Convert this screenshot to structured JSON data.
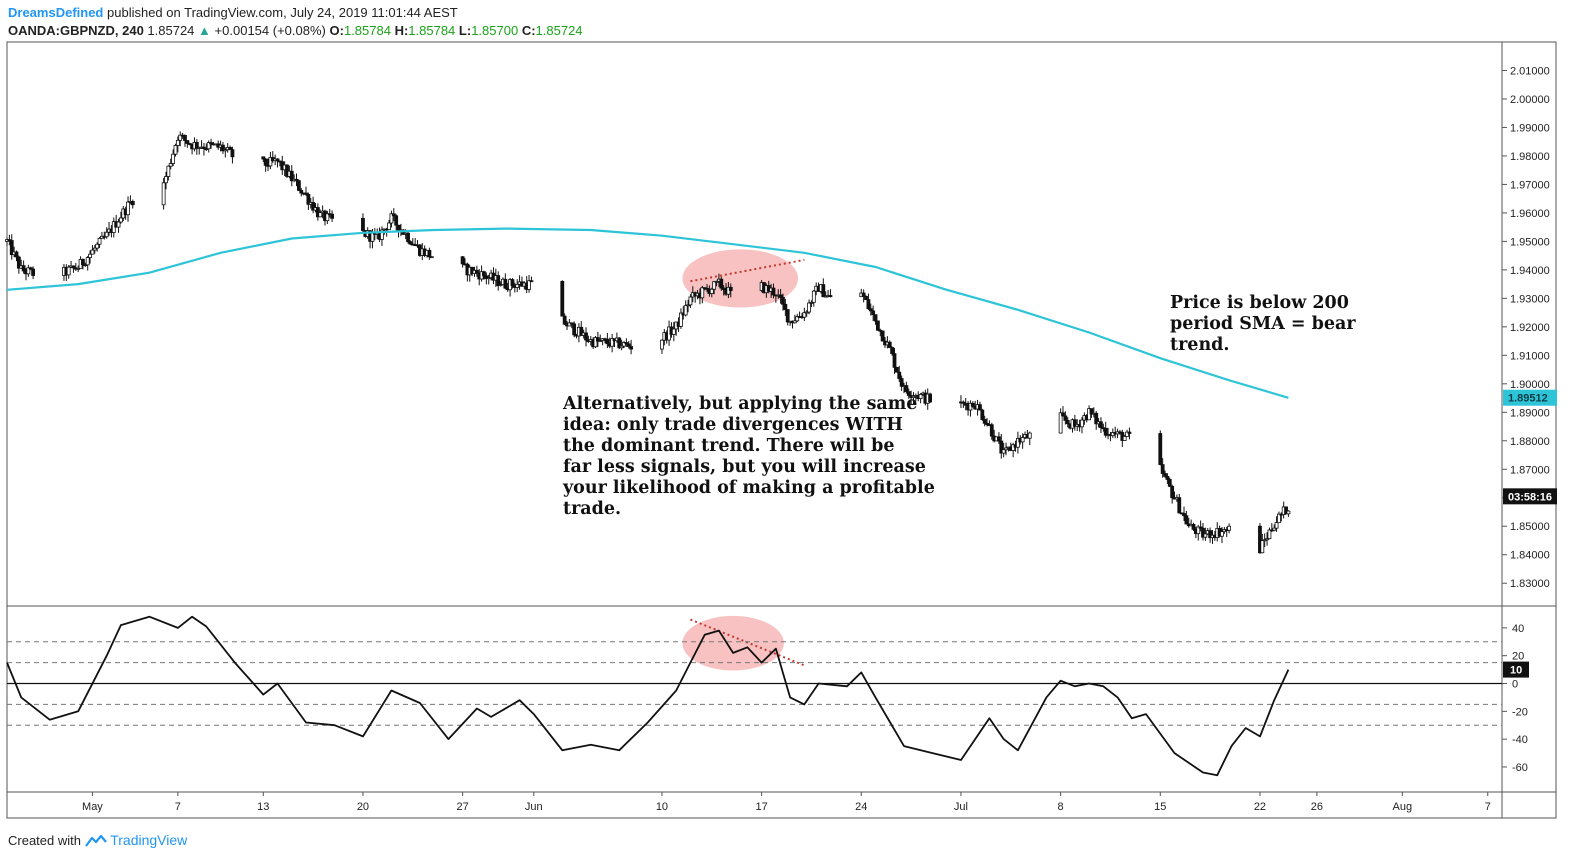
{
  "header": {
    "author": "DreamsDefined",
    "published": "published on TradingView.com, July 24, 2019 11:01:44 AEST",
    "symbol": "OANDA:GBPNZD, 240",
    "last": "1.85724",
    "change": "+0.00154 (+0.08%)",
    "o_label": "O:",
    "o": "1.85784",
    "h_label": "H:",
    "h": "1.85784",
    "l_label": "L:",
    "l": "1.85700",
    "c_label": "C:",
    "c": "1.85724"
  },
  "footer": {
    "created": "Created with",
    "brand": "TradingView"
  },
  "annotations": {
    "divergence_note": "Alternatively, but applying the same\nidea: only trade divergences WITH\nthe dominant trend. There will be\nfar less signals, but you will increase\nyour likelihood of making a profitable\ntrade.",
    "sma_note": "Price is below 200\nperiod SMA = bear\ntrend."
  },
  "colors": {
    "sma": "#2ec4d8",
    "candle": "#111111",
    "oscillator": "#111111",
    "highlight": "#f7b7b7",
    "divergence_line": "#c0392b",
    "price_badge": "#2ec4d8",
    "countdown_badge": "#111111"
  },
  "chart_data": {
    "type": "candlestick",
    "price_axis": {
      "ylim": [
        1.822,
        2.02
      ],
      "ticks": [
        "2.01000",
        "2.00000",
        "1.99000",
        "1.98000",
        "1.97000",
        "1.96000",
        "1.95000",
        "1.94000",
        "1.93000",
        "1.92000",
        "1.91000",
        "1.90000",
        "1.89000",
        "1.88000",
        "1.87000",
        "1.86000",
        "1.85000",
        "1.84000",
        "1.83000"
      ],
      "sma_label": "1.89512",
      "countdown_label": "03:58:16"
    },
    "x_axis": {
      "ticks": [
        "May",
        "7",
        "13",
        "20",
        "27",
        "Jun",
        "10",
        "17",
        "24",
        "Jul",
        "8",
        "15",
        "22",
        "26",
        "Aug",
        "7"
      ],
      "xlim": [
        "Apr 25",
        "Aug 8"
      ]
    },
    "price_path": [
      {
        "x": "Apr 25",
        "y": 1.95
      },
      {
        "x": "Apr 26",
        "y": 1.94
      },
      {
        "x": "Apr 28",
        "y": 1.937
      },
      {
        "x": "Apr 30",
        "y": 1.941
      },
      {
        "x": "May 2",
        "y": 1.952
      },
      {
        "x": "May 4",
        "y": 1.966
      },
      {
        "x": "May 6",
        "y": 1.97
      },
      {
        "x": "May 7",
        "y": 1.987
      },
      {
        "x": "May 8",
        "y": 1.984
      },
      {
        "x": "May 10",
        "y": 1.983
      },
      {
        "x": "May 12",
        "y": 1.976
      },
      {
        "x": "May 14",
        "y": 1.978
      },
      {
        "x": "May 16",
        "y": 1.966
      },
      {
        "x": "May 17",
        "y": 1.959
      },
      {
        "x": "May 19",
        "y": 1.955
      },
      {
        "x": "May 21",
        "y": 1.951
      },
      {
        "x": "May 22",
        "y": 1.958
      },
      {
        "x": "May 24",
        "y": 1.947
      },
      {
        "x": "May 26",
        "y": 1.942
      },
      {
        "x": "May 28",
        "y": 1.939
      },
      {
        "x": "May 30",
        "y": 1.935
      },
      {
        "x": "Jun 1",
        "y": 1.935
      },
      {
        "x": "Jun 3",
        "y": 1.922
      },
      {
        "x": "Jun 5",
        "y": 1.915
      },
      {
        "x": "Jun 7",
        "y": 1.914
      },
      {
        "x": "Jun 9",
        "y": 1.912
      },
      {
        "x": "Jun 11",
        "y": 1.92
      },
      {
        "x": "Jun 12",
        "y": 1.93
      },
      {
        "x": "Jun 14",
        "y": 1.935
      },
      {
        "x": "Jun 15",
        "y": 1.931
      },
      {
        "x": "Jun 16",
        "y": 1.936
      },
      {
        "x": "Jun 18",
        "y": 1.932
      },
      {
        "x": "Jun 19",
        "y": 1.922
      },
      {
        "x": "Jun 20",
        "y": 1.925
      },
      {
        "x": "Jun 21",
        "y": 1.934
      },
      {
        "x": "Jun 22",
        "y": 1.929
      },
      {
        "x": "Jun 24",
        "y": 1.932
      },
      {
        "x": "Jun 25",
        "y": 1.922
      },
      {
        "x": "Jun 26",
        "y": 1.912
      },
      {
        "x": "Jun 27",
        "y": 1.898
      },
      {
        "x": "Jun 28",
        "y": 1.896
      },
      {
        "x": "Jun 30",
        "y": 1.892
      },
      {
        "x": "Jul 2",
        "y": 1.893
      },
      {
        "x": "Jul 3",
        "y": 1.885
      },
      {
        "x": "Jul 4",
        "y": 1.875
      },
      {
        "x": "Jul 5",
        "y": 1.88
      },
      {
        "x": "Jul 7",
        "y": 1.884
      },
      {
        "x": "Jul 8",
        "y": 1.888
      },
      {
        "x": "Jul 9",
        "y": 1.885
      },
      {
        "x": "Jul 10",
        "y": 1.89
      },
      {
        "x": "Jul 11",
        "y": 1.884
      },
      {
        "x": "Jul 12",
        "y": 1.882
      },
      {
        "x": "Jul 14",
        "y": 1.88
      },
      {
        "x": "Jul 15",
        "y": 1.87
      },
      {
        "x": "Jul 16",
        "y": 1.86
      },
      {
        "x": "Jul 17",
        "y": 1.85
      },
      {
        "x": "Jul 18",
        "y": 1.847
      },
      {
        "x": "Jul 20",
        "y": 1.849
      },
      {
        "x": "Jul 21",
        "y": 1.848
      },
      {
        "x": "Jul 22",
        "y": 1.842
      },
      {
        "x": "Jul 23",
        "y": 1.851
      },
      {
        "x": "Jul 24",
        "y": 1.857
      }
    ],
    "sma_200": [
      {
        "x": "Apr 25",
        "y": 1.933
      },
      {
        "x": "Apr 30",
        "y": 1.935
      },
      {
        "x": "May 5",
        "y": 1.939
      },
      {
        "x": "May 10",
        "y": 1.946
      },
      {
        "x": "May 15",
        "y": 1.951
      },
      {
        "x": "May 20",
        "y": 1.953
      },
      {
        "x": "May 25",
        "y": 1.954
      },
      {
        "x": "May 30",
        "y": 1.9545
      },
      {
        "x": "Jun 5",
        "y": 1.954
      },
      {
        "x": "Jun 10",
        "y": 1.952
      },
      {
        "x": "Jun 15",
        "y": 1.949
      },
      {
        "x": "Jun 20",
        "y": 1.946
      },
      {
        "x": "Jun 25",
        "y": 1.941
      },
      {
        "x": "Jun 30",
        "y": 1.933
      },
      {
        "x": "Jul 5",
        "y": 1.926
      },
      {
        "x": "Jul 10",
        "y": 1.918
      },
      {
        "x": "Jul 15",
        "y": 1.909
      },
      {
        "x": "Jul 20",
        "y": 1.901
      },
      {
        "x": "Jul 24",
        "y": 1.8951
      }
    ],
    "oscillator": {
      "ylim": [
        -78,
        55
      ],
      "ticks": [
        "40",
        "20",
        "0",
        "-20",
        "-40",
        "-60"
      ],
      "dashed_levels": [
        30,
        15,
        -15,
        -30
      ],
      "zero_line": 0,
      "current_label": "10",
      "points": [
        {
          "x": "Apr 25",
          "y": 15
        },
        {
          "x": "Apr 26",
          "y": -10
        },
        {
          "x": "Apr 28",
          "y": -26
        },
        {
          "x": "Apr 30",
          "y": -20
        },
        {
          "x": "May 2",
          "y": 20
        },
        {
          "x": "May 3",
          "y": 42
        },
        {
          "x": "May 5",
          "y": 48
        },
        {
          "x": "May 7",
          "y": 40
        },
        {
          "x": "May 8",
          "y": 48
        },
        {
          "x": "May 9",
          "y": 41
        },
        {
          "x": "May 11",
          "y": 15
        },
        {
          "x": "May 13",
          "y": -8
        },
        {
          "x": "May 14",
          "y": 0
        },
        {
          "x": "May 16",
          "y": -28
        },
        {
          "x": "May 18",
          "y": -30
        },
        {
          "x": "May 20",
          "y": -38
        },
        {
          "x": "May 22",
          "y": -5
        },
        {
          "x": "May 24",
          "y": -14
        },
        {
          "x": "May 26",
          "y": -40
        },
        {
          "x": "May 28",
          "y": -18
        },
        {
          "x": "May 29",
          "y": -24
        },
        {
          "x": "May 31",
          "y": -12
        },
        {
          "x": "Jun 1",
          "y": -22
        },
        {
          "x": "Jun 3",
          "y": -48
        },
        {
          "x": "Jun 5",
          "y": -44
        },
        {
          "x": "Jun 7",
          "y": -48
        },
        {
          "x": "Jun 9",
          "y": -28
        },
        {
          "x": "Jun 11",
          "y": -5
        },
        {
          "x": "Jun 12",
          "y": 15
        },
        {
          "x": "Jun 13",
          "y": 35
        },
        {
          "x": "Jun 14",
          "y": 38
        },
        {
          "x": "Jun 15",
          "y": 22
        },
        {
          "x": "Jun 16",
          "y": 26
        },
        {
          "x": "Jun 17",
          "y": 15
        },
        {
          "x": "Jun 18",
          "y": 25
        },
        {
          "x": "Jun 19",
          "y": -10
        },
        {
          "x": "Jun 20",
          "y": -15
        },
        {
          "x": "Jun 21",
          "y": 0
        },
        {
          "x": "Jun 23",
          "y": -2
        },
        {
          "x": "Jun 24",
          "y": 8
        },
        {
          "x": "Jun 25",
          "y": -10
        },
        {
          "x": "Jun 27",
          "y": -45
        },
        {
          "x": "Jun 29",
          "y": -50
        },
        {
          "x": "Jul 1",
          "y": -55
        },
        {
          "x": "Jul 3",
          "y": -25
        },
        {
          "x": "Jul 4",
          "y": -40
        },
        {
          "x": "Jul 5",
          "y": -48
        },
        {
          "x": "Jul 7",
          "y": -10
        },
        {
          "x": "Jul 8",
          "y": 2
        },
        {
          "x": "Jul 9",
          "y": -2
        },
        {
          "x": "Jul 10",
          "y": 0
        },
        {
          "x": "Jul 11",
          "y": -2
        },
        {
          "x": "Jul 12",
          "y": -10
        },
        {
          "x": "Jul 13",
          "y": -25
        },
        {
          "x": "Jul 14",
          "y": -22
        },
        {
          "x": "Jul 16",
          "y": -50
        },
        {
          "x": "Jul 18",
          "y": -64
        },
        {
          "x": "Jul 19",
          "y": -66
        },
        {
          "x": "Jul 20",
          "y": -45
        },
        {
          "x": "Jul 21",
          "y": -32
        },
        {
          "x": "Jul 22",
          "y": -38
        },
        {
          "x": "Jul 23",
          "y": -12
        },
        {
          "x": "Jul 24",
          "y": 10
        }
      ]
    },
    "highlights": [
      {
        "pane": "price",
        "x0": "Jun 12",
        "x1": "Jun 19",
        "y0": 1.943,
        "y1": 1.931
      },
      {
        "pane": "oscillator",
        "x0": "Jun 12",
        "x1": "Jun 18",
        "y0": 40,
        "y1": 18
      }
    ],
    "divergence_lines": [
      {
        "pane": "price",
        "from": {
          "x": "Jun 12",
          "y": 1.936
        },
        "to": {
          "x": "Jun 20",
          "y": 1.9435
        }
      },
      {
        "pane": "oscillator",
        "from": {
          "x": "Jun 12",
          "y": 46
        },
        "to": {
          "x": "Jun 20",
          "y": 13
        }
      }
    ]
  }
}
